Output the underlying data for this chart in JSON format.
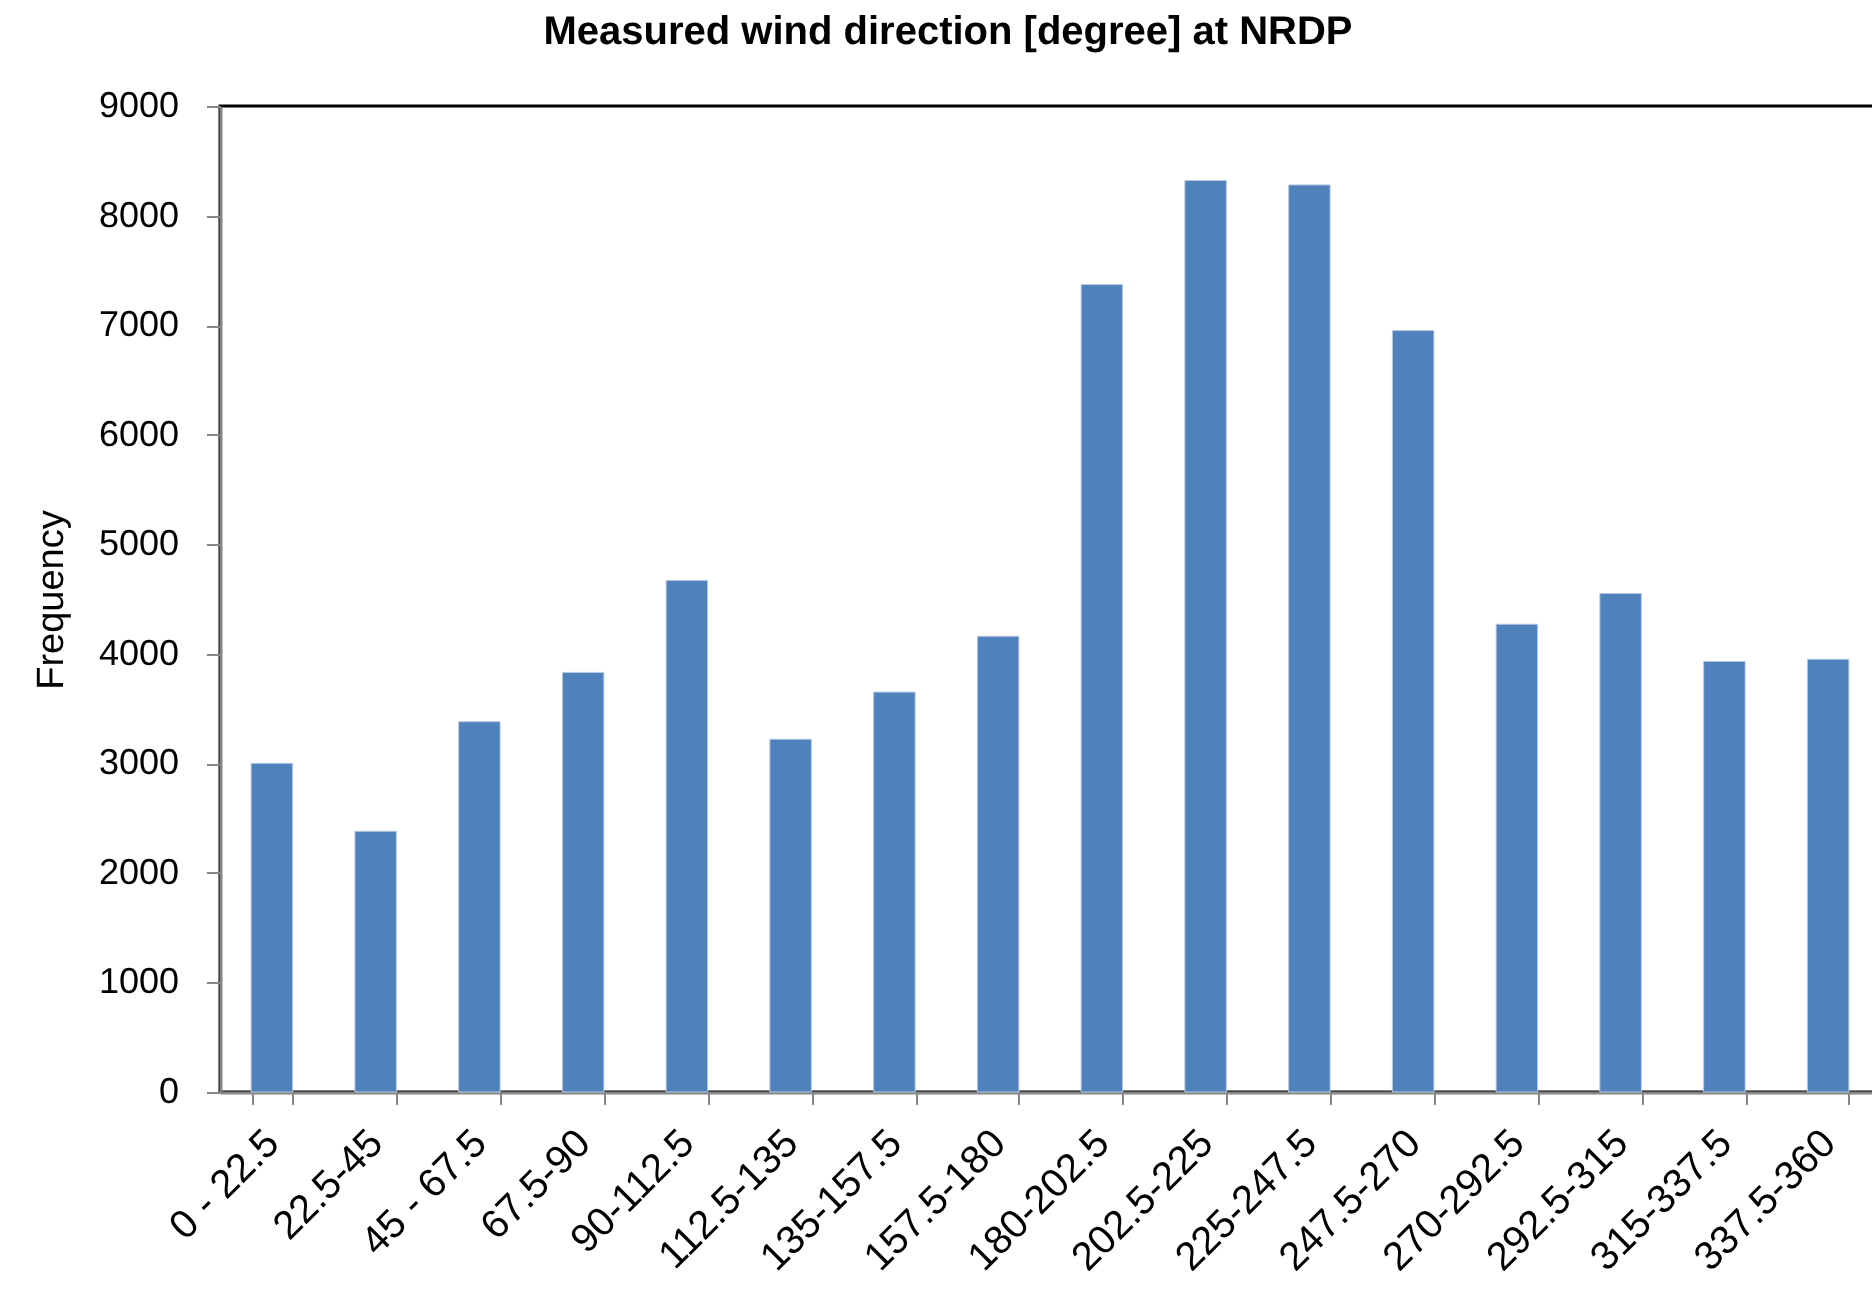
{
  "chart_data": {
    "type": "bar",
    "title": "Measured wind direction [degree] at NRDP",
    "ylabel": "Frequency",
    "categories": [
      "0 - 22.5",
      "22.5-45",
      "45 - 67.5",
      "67.5-90",
      "90-112.5",
      "112.5-135",
      "135-157.5",
      "157.5-180",
      "180-202.5",
      "202.5-225",
      "225-247.5",
      "247.5-270",
      "270-292.5",
      "292.5-315",
      "315-337.5",
      "337.5-360"
    ],
    "values": [
      3000,
      2380,
      3380,
      3830,
      4670,
      3220,
      3650,
      4160,
      7370,
      8320,
      8280,
      6950,
      4270,
      4550,
      3930,
      3950
    ],
    "color": "#4f81bd",
    "ylim": [
      0,
      9000
    ],
    "yticks": [
      0,
      1000,
      2000,
      3000,
      4000,
      5000,
      6000,
      7000,
      8000,
      9000
    ]
  }
}
